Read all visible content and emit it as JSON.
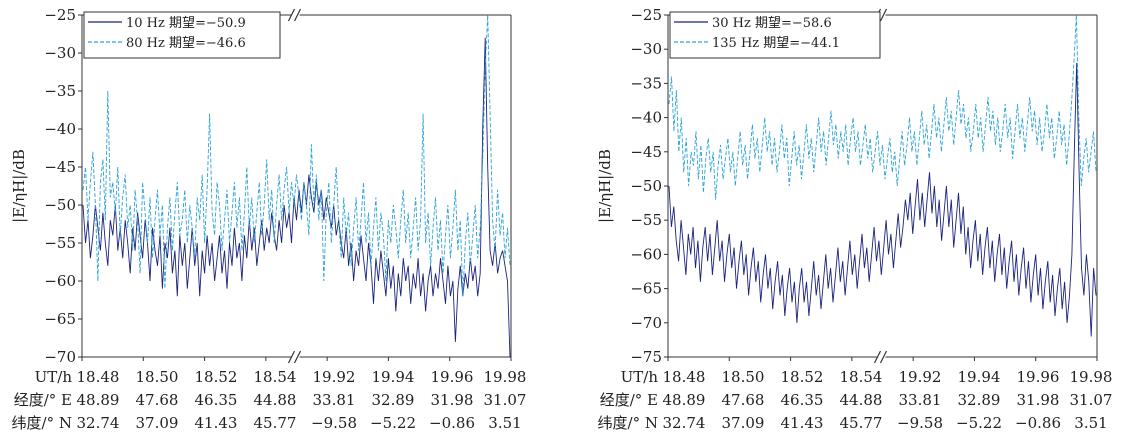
{
  "chart_data": [
    {
      "type": "line",
      "ylabel": "|E/ηH|/dB",
      "ylim": [
        -70,
        -25
      ],
      "yticks": [
        "−25",
        "−30",
        "−35",
        "−40",
        "−45",
        "−50",
        "−55",
        "−60",
        "−65",
        "−70"
      ],
      "x_axis_break": "between 18.54 and 19.92",
      "legend_position": "top-left",
      "rows": [
        {
          "label": "UT/h",
          "values": [
            "18.48",
            "18.50",
            "18.52",
            "18.54",
            "19.92",
            "19.94",
            "19.96",
            "19.98"
          ]
        },
        {
          "label": "经度/° E",
          "values": [
            "48.89",
            "47.68",
            "46.35",
            "44.88",
            "33.81",
            "32.89",
            "31.98",
            "31.07"
          ]
        },
        {
          "label": "纬度/° N",
          "values": [
            "32.74",
            "37.09",
            "41.43",
            "45.77",
            "−9.58",
            "−5.22",
            "−0.86",
            "3.51"
          ]
        }
      ],
      "series": [
        {
          "name": "10 Hz  期望=−50.9",
          "color": "#1a237e",
          "dash": "solid",
          "values": [
            -50,
            -55,
            -52,
            -57,
            -54,
            -50,
            -53,
            -56,
            -51,
            -55,
            -58,
            -52,
            -54,
            -50,
            -56,
            -53,
            -57,
            -52,
            -55,
            -59,
            -53,
            -56,
            -51,
            -54,
            -57,
            -52,
            -55,
            -60,
            -53,
            -56,
            -58,
            -54,
            -61,
            -55,
            -57,
            -53,
            -59,
            -56,
            -62,
            -54,
            -58,
            -55,
            -61,
            -57,
            -53,
            -58,
            -55,
            -62,
            -56,
            -59,
            -54,
            -58,
            -55,
            -60,
            -57,
            -54,
            -59,
            -56,
            -61,
            -55,
            -58,
            -53,
            -57,
            -55,
            -60,
            -54,
            -57,
            -52,
            -56,
            -53,
            -58,
            -55,
            -52,
            -56,
            -53,
            -55,
            -51,
            -54,
            -56,
            -52,
            -55,
            -50,
            -53,
            -51,
            -55,
            -49,
            -52,
            -48,
            -51,
            -47,
            -50,
            -46,
            -49,
            -51,
            -47,
            -50,
            -48,
            -52,
            -49,
            -51,
            -53,
            -50,
            -54,
            -52,
            -55,
            -57,
            -53,
            -58,
            -55,
            -60,
            -56,
            -58,
            -54,
            -57,
            -60,
            -55,
            -58,
            -63,
            -57,
            -60,
            -56,
            -59,
            -62,
            -57,
            -61,
            -58,
            -64,
            -59,
            -62,
            -57,
            -60,
            -58,
            -63,
            -59,
            -61,
            -57,
            -62,
            -59,
            -64,
            -60,
            -58,
            -62,
            -59,
            -61,
            -57,
            -60,
            -63,
            -58,
            -62,
            -60,
            -68,
            -61,
            -58,
            -62,
            -59,
            -61,
            -57,
            -60,
            -58,
            -62,
            -59,
            -40,
            -28,
            -45,
            -56,
            -58,
            -55,
            -59,
            -57,
            -56,
            -58,
            -60,
            -70
          ]
        },
        {
          "name": "80 Hz  期望=−46.6",
          "color": "#29a3d6",
          "dash": "dashed",
          "values": [
            -48,
            -45,
            -52,
            -47,
            -43,
            -50,
            -60,
            -47,
            -44,
            -52,
            -35,
            -49,
            -47,
            -51,
            -45,
            -54,
            -49,
            -46,
            -53,
            -50,
            -56,
            -48,
            -52,
            -59,
            -47,
            -51,
            -55,
            -49,
            -57,
            -52,
            -48,
            -54,
            -50,
            -61,
            -53,
            -49,
            -56,
            -51,
            -47,
            -54,
            -52,
            -48,
            -55,
            -50,
            -53,
            -57,
            -49,
            -52,
            -46,
            -55,
            -48,
            -38,
            -51,
            -54,
            -47,
            -50,
            -56,
            -52,
            -48,
            -55,
            -51,
            -47,
            -53,
            -49,
            -56,
            -51,
            -45,
            -53,
            -49,
            -55,
            -51,
            -47,
            -54,
            -50,
            -44,
            -52,
            -48,
            -55,
            -50,
            -46,
            -52,
            -48,
            -45,
            -51,
            -47,
            -50,
            -46,
            -49,
            -52,
            -47,
            -50,
            -54,
            -42,
            -50,
            -46,
            -52,
            -48,
            -60,
            -51,
            -47,
            -55,
            -50,
            -45,
            -52,
            -57,
            -49,
            -54,
            -51,
            -58,
            -53,
            -49,
            -56,
            -52,
            -47,
            -55,
            -51,
            -58,
            -53,
            -49,
            -56,
            -51,
            -54,
            -60,
            -52,
            -55,
            -50,
            -53,
            -57,
            -52,
            -48,
            -55,
            -51,
            -57,
            -53,
            -49,
            -56,
            -52,
            -38,
            -55,
            -51,
            -58,
            -53,
            -49,
            -56,
            -52,
            -59,
            -54,
            -50,
            -57,
            -53,
            -48,
            -56,
            -52,
            -62,
            -55,
            -51,
            -58,
            -54,
            -50,
            -57,
            -53,
            -44,
            -32,
            -25,
            -38,
            -52,
            -56,
            -48,
            -54,
            -51,
            -57,
            -53,
            -58
          ]
        }
      ]
    },
    {
      "type": "line",
      "ylabel": "|E/ηH|/dB",
      "ylim": [
        -75,
        -25
      ],
      "yticks": [
        "−25",
        "−30",
        "−35",
        "−40",
        "−45",
        "−50",
        "−55",
        "−60",
        "−65",
        "−70",
        "−75"
      ],
      "x_axis_break": "between 18.54 and 19.92",
      "legend_position": "top-left",
      "rows": [
        {
          "label": "UT/h",
          "values": [
            "18.48",
            "18.50",
            "18.52",
            "18.54",
            "19.92",
            "19.94",
            "19.96",
            "19.98"
          ]
        },
        {
          "label": "经度/° E",
          "values": [
            "48.89",
            "47.68",
            "46.35",
            "44.88",
            "33.81",
            "32.89",
            "31.98",
            "31.07"
          ]
        },
        {
          "label": "纬度/° N",
          "values": [
            "32.74",
            "37.09",
            "41.43",
            "45.77",
            "−9.58",
            "−5.22",
            "−0.86",
            "3.51"
          ]
        }
      ],
      "series": [
        {
          "name": "30 Hz  期望=−58.6",
          "color": "#1a237e",
          "dash": "solid",
          "values": [
            -50,
            -56,
            -53,
            -58,
            -61,
            -55,
            -59,
            -63,
            -57,
            -60,
            -56,
            -62,
            -58,
            -64,
            -59,
            -56,
            -61,
            -57,
            -63,
            -59,
            -55,
            -61,
            -58,
            -64,
            -60,
            -57,
            -62,
            -59,
            -65,
            -61,
            -58,
            -63,
            -60,
            -66,
            -62,
            -59,
            -64,
            -61,
            -67,
            -63,
            -60,
            -65,
            -62,
            -68,
            -64,
            -61,
            -66,
            -63,
            -69,
            -65,
            -62,
            -67,
            -64,
            -70,
            -65,
            -62,
            -67,
            -64,
            -69,
            -65,
            -61,
            -66,
            -63,
            -68,
            -64,
            -60,
            -65,
            -62,
            -67,
            -63,
            -59,
            -64,
            -61,
            -66,
            -62,
            -58,
            -63,
            -60,
            -65,
            -61,
            -57,
            -62,
            -59,
            -64,
            -60,
            -56,
            -61,
            -58,
            -63,
            -59,
            -55,
            -60,
            -57,
            -62,
            -58,
            -54,
            -59,
            -56,
            -52,
            -55,
            -51,
            -57,
            -53,
            -49,
            -55,
            -51,
            -56,
            -52,
            -48,
            -54,
            -50,
            -56,
            -52,
            -58,
            -54,
            -50,
            -56,
            -52,
            -59,
            -55,
            -51,
            -57,
            -53,
            -60,
            -56,
            -62,
            -58,
            -55,
            -61,
            -57,
            -63,
            -59,
            -56,
            -62,
            -58,
            -64,
            -60,
            -57,
            -63,
            -59,
            -65,
            -61,
            -58,
            -64,
            -60,
            -66,
            -62,
            -59,
            -65,
            -61,
            -67,
            -63,
            -60,
            -66,
            -62,
            -68,
            -64,
            -61,
            -67,
            -63,
            -69,
            -65,
            -62,
            -68,
            -64,
            -70,
            -66,
            -60,
            -45,
            -32,
            -48,
            -62,
            -66,
            -60,
            -64,
            -72,
            -62,
            -66
          ]
        },
        {
          "name": "135 Hz  期望=−44.1",
          "color": "#29a3d6",
          "dash": "dashed",
          "values": [
            -38,
            -34,
            -42,
            -36,
            -45,
            -40,
            -48,
            -43,
            -50,
            -45,
            -47,
            -42,
            -49,
            -44,
            -51,
            -46,
            -43,
            -48,
            -45,
            -52,
            -47,
            -44,
            -49,
            -46,
            -43,
            -48,
            -45,
            -50,
            -46,
            -42,
            -47,
            -44,
            -49,
            -45,
            -41,
            -46,
            -43,
            -48,
            -44,
            -40,
            -45,
            -42,
            -47,
            -43,
            -48,
            -45,
            -41,
            -46,
            -43,
            -50,
            -46,
            -42,
            -47,
            -44,
            -49,
            -45,
            -41,
            -46,
            -43,
            -48,
            -44,
            -40,
            -45,
            -42,
            -47,
            -43,
            -39,
            -44,
            -41,
            -46,
            -42,
            -45,
            -41,
            -47,
            -43,
            -40,
            -45,
            -42,
            -47,
            -44,
            -41,
            -46,
            -43,
            -48,
            -45,
            -42,
            -47,
            -44,
            -49,
            -46,
            -43,
            -48,
            -45,
            -50,
            -46,
            -42,
            -47,
            -44,
            -40,
            -45,
            -42,
            -47,
            -43,
            -39,
            -44,
            -41,
            -46,
            -42,
            -38,
            -43,
            -40,
            -45,
            -41,
            -37,
            -42,
            -39,
            -44,
            -40,
            -36,
            -41,
            -38,
            -43,
            -40,
            -45,
            -42,
            -38,
            -43,
            -40,
            -45,
            -41,
            -37,
            -42,
            -39,
            -44,
            -40,
            -45,
            -42,
            -38,
            -43,
            -40,
            -46,
            -42,
            -38,
            -43,
            -40,
            -45,
            -41,
            -37,
            -42,
            -39,
            -44,
            -40,
            -45,
            -42,
            -38,
            -43,
            -40,
            -46,
            -43,
            -39,
            -44,
            -41,
            -47,
            -43,
            -38,
            -32,
            -25,
            -40,
            -50,
            -46,
            -43,
            -48,
            -45,
            -42,
            -48
          ]
        }
      ]
    }
  ]
}
